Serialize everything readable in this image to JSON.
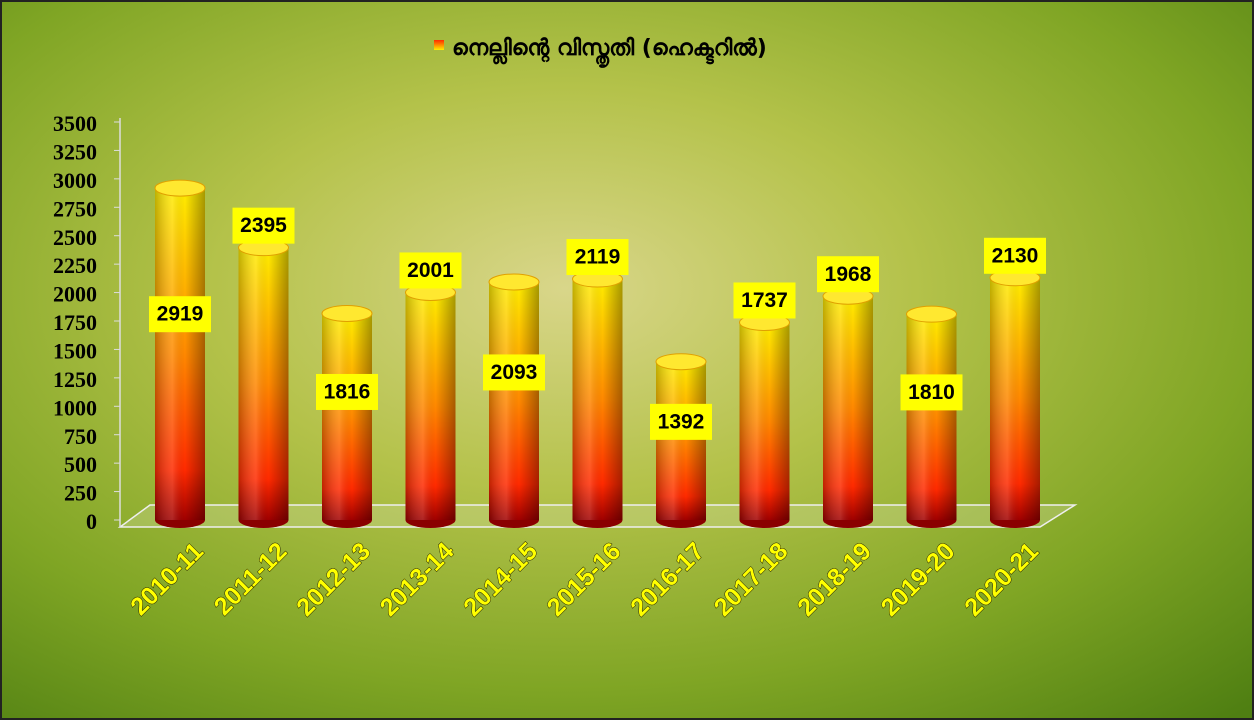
{
  "chart_data": {
    "type": "bar",
    "title": "നെല്ലിന്റെ  വിസ്തൃതി (ഹെക്ടറിൽ)",
    "categories": [
      "2010-11",
      "2011-12",
      "2012-13",
      "2013-14",
      "2014-15",
      "2015-16",
      "2016-17",
      "2017-18",
      "2018-19",
      "2019-20",
      "2020-21"
    ],
    "values": [
      2919,
      2395,
      1816,
      2001,
      2093,
      2119,
      1392,
      1737,
      1968,
      1810,
      2130
    ],
    "colors": [
      "#ffee00",
      "#ff2a00"
    ],
    "ylim": [
      0,
      3500
    ],
    "yticks": [
      0,
      250,
      500,
      750,
      1000,
      1250,
      1500,
      1750,
      2000,
      2250,
      2500,
      2750,
      3000,
      3250,
      3500
    ],
    "legend": "top"
  }
}
